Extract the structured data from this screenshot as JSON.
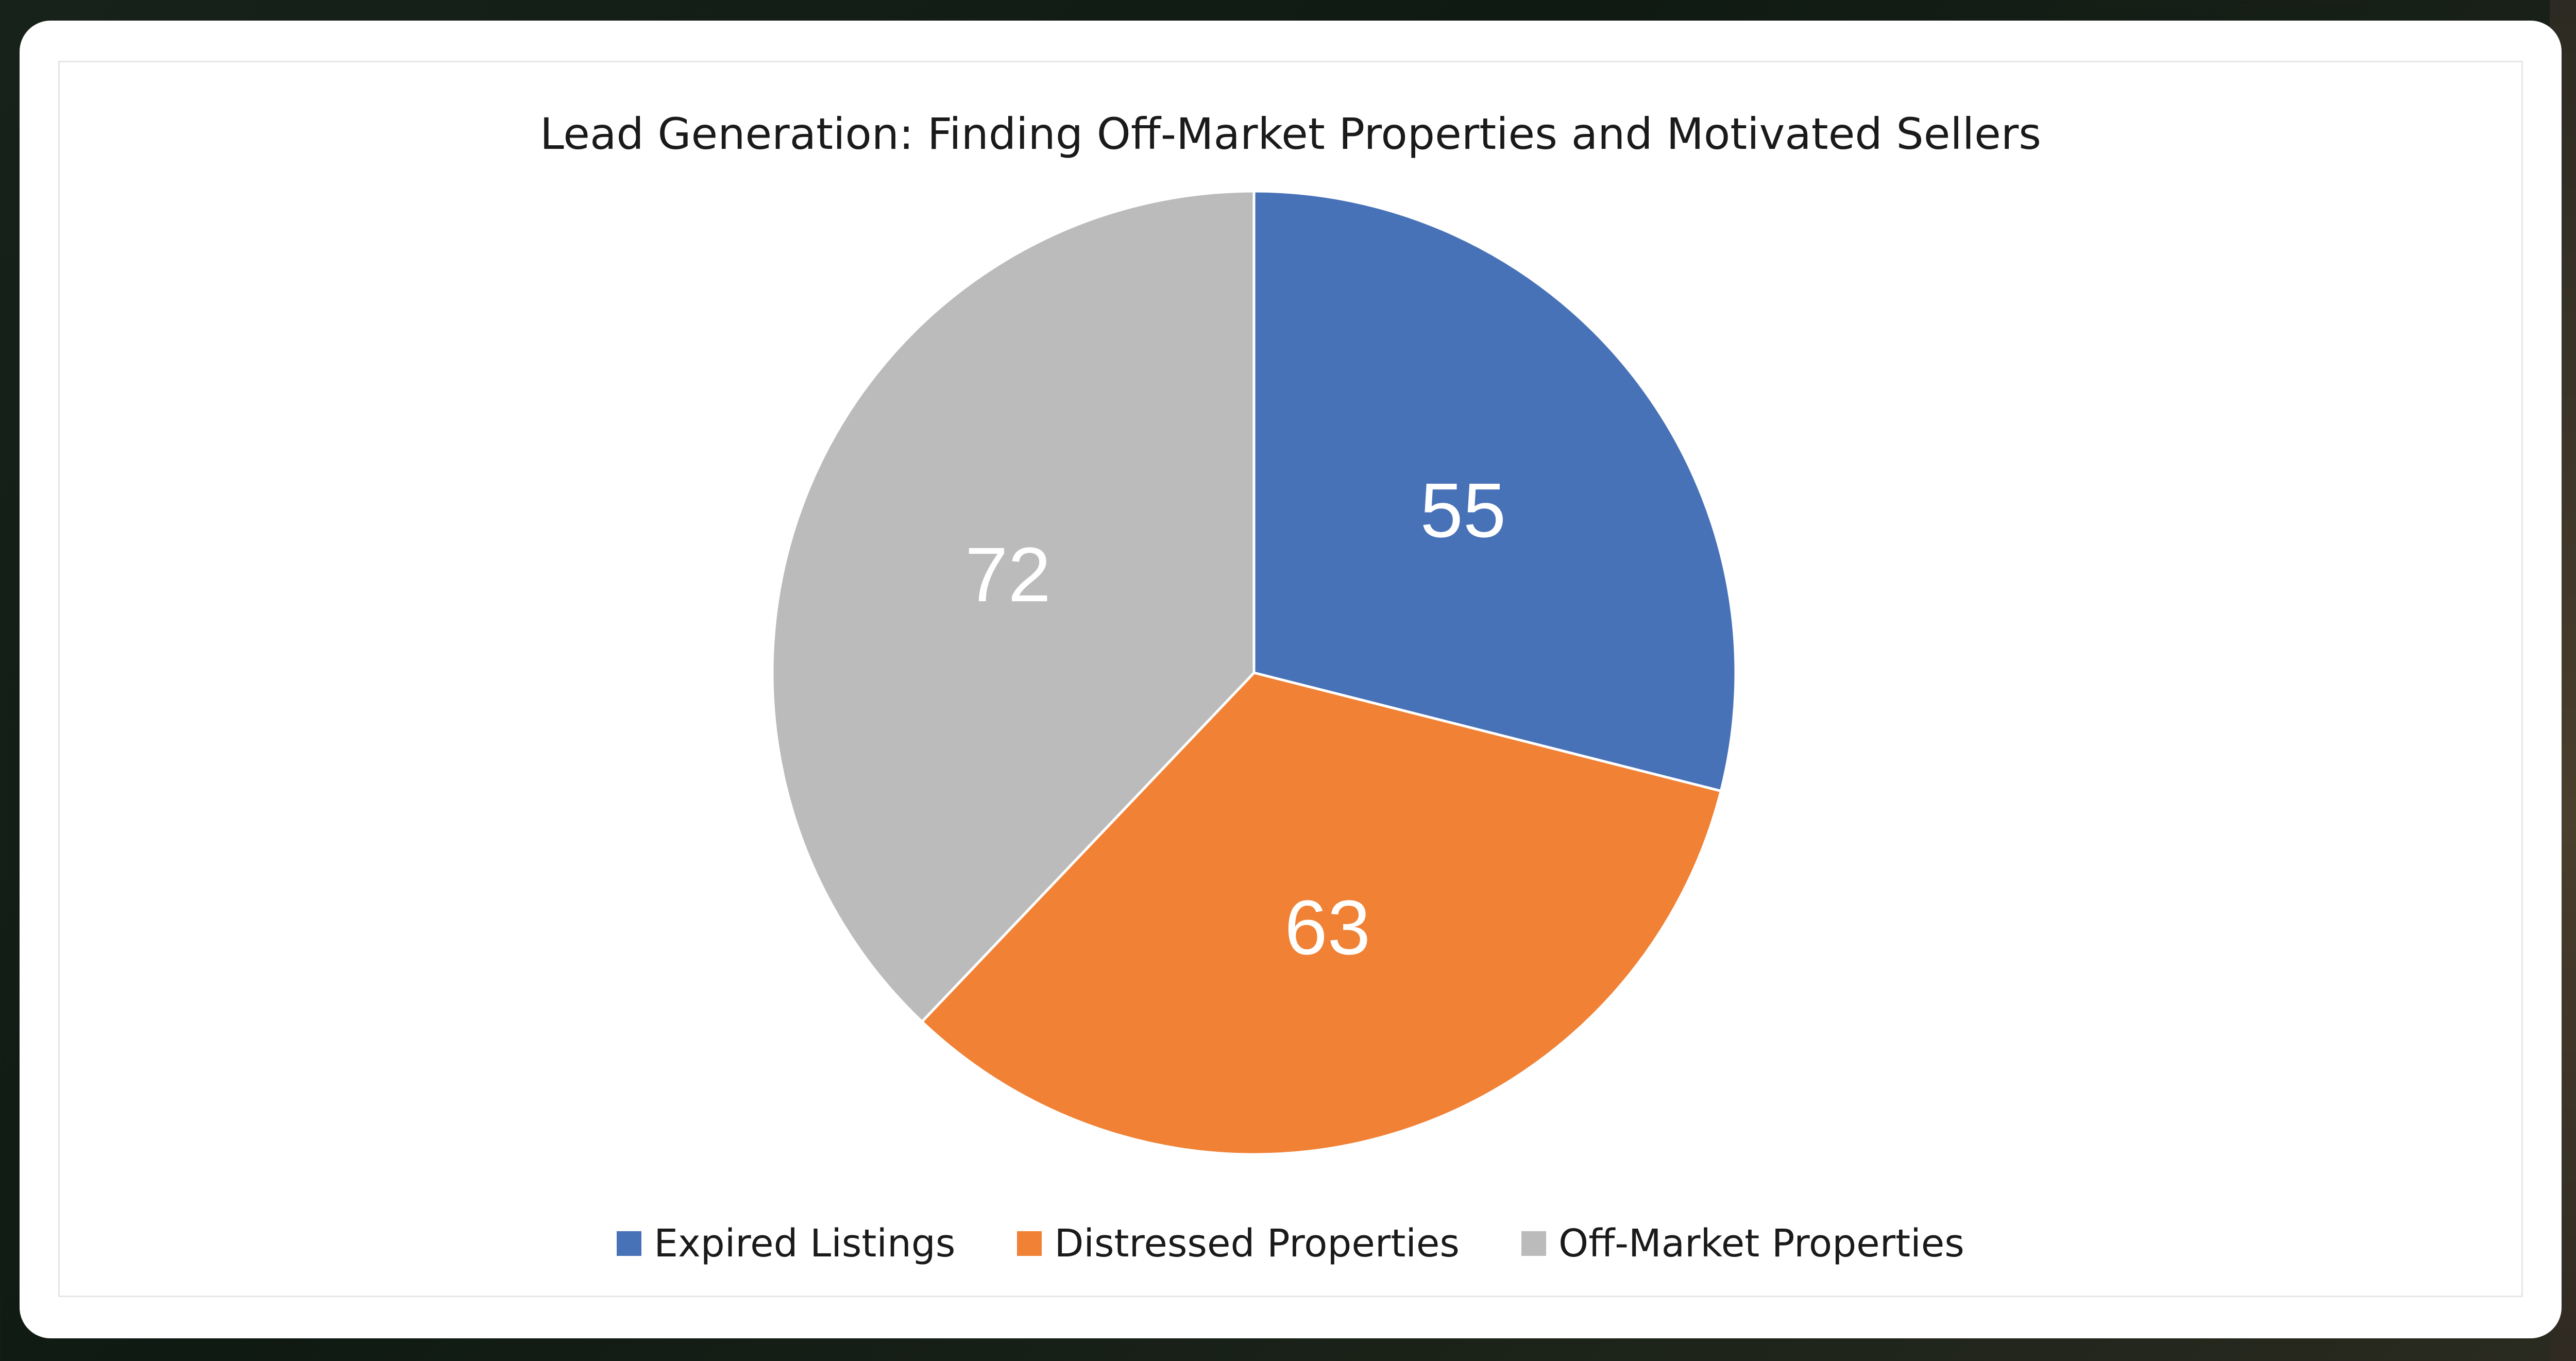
{
  "chart_data": {
    "type": "pie",
    "title": "Lead Generation: Finding Off-Market Properties and Motivated Sellers",
    "categories": [
      "Expired Listings",
      "Distressed Properties",
      "Off-Market Properties"
    ],
    "values": [
      55,
      63,
      72
    ],
    "colors": [
      "#4872b7",
      "#f08135",
      "#bbbbbb"
    ],
    "data_labels": [
      "55",
      "63",
      "72"
    ],
    "start_angle": "12-o-clock",
    "direction": "clockwise",
    "legend_position": "bottom"
  }
}
